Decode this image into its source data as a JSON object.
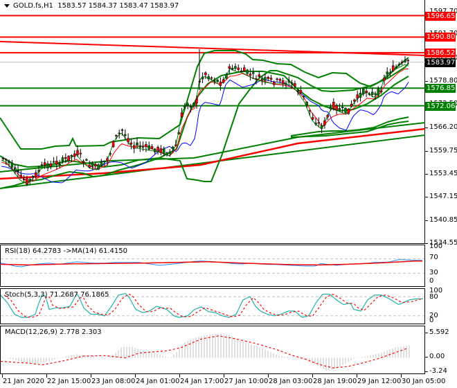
{
  "header": {
    "symbol": "GOLD.fs,H1",
    "open": "1583.57",
    "high": "1584.37",
    "low": "1583.47",
    "close": "1583.97",
    "menu_icon": "triangle-down-icon"
  },
  "main_axis": {
    "ticks": [
      "1597.70",
      "1591.70",
      "1585.10",
      "1578.80",
      "1572.50",
      "1566.20",
      "1559.75",
      "1553.45",
      "1547.15",
      "1540.85",
      "1534.55"
    ],
    "visible_ticks": [
      "1578.80",
      "1566.20",
      "1559.75",
      "1553.45",
      "1547.15",
      "1540.85",
      "1534.55"
    ]
  },
  "price_levels": [
    {
      "value": "1596.65",
      "color": "#ff0000",
      "type": "resistance"
    },
    {
      "value": "1590.80",
      "color": "#ff0000",
      "type": "resistance"
    },
    {
      "value": "1586.52",
      "color": "#ff0000",
      "type": "resistance"
    },
    {
      "value": "1583.97",
      "color": "#000000",
      "type": "current-price"
    },
    {
      "value": "1576.85",
      "color": "#008000",
      "type": "support"
    },
    {
      "value": "1572.06",
      "color": "#008000",
      "type": "support"
    }
  ],
  "rsi": {
    "label": "RSI(18) 64.2783  ->MA(14) 61.4150",
    "axis": [
      "100",
      "70",
      "30",
      "0"
    ]
  },
  "stoch": {
    "label": "Stoch(5,3,3) 71.2687 76.1865",
    "axis": [
      "100",
      "80",
      "20",
      "0"
    ]
  },
  "macd": {
    "label": "MACD(12,26,9) 2.778 2.303",
    "axis": [
      "5.592",
      "0.00",
      "-3.24"
    ]
  },
  "time_axis": [
    "21 Jan 2020",
    "22 Jan 15:00",
    "23 Jan 08:00",
    "24 Jan 01:00",
    "24 Jan 17:00",
    "27 Jan 10:00",
    "28 Jan 03:00",
    "28 Jan 19:00",
    "29 Jan 12:00",
    "30 Jan 05:00"
  ],
  "chart_data": [
    {
      "type": "candlestick",
      "title": "GOLD.fs,H1",
      "ohlc_last": {
        "open": 1583.57,
        "high": 1584.37,
        "low": 1583.47,
        "close": 1583.97
      },
      "ylim": [
        1534.55,
        1597.7
      ],
      "x": [
        "21 Jan 2020",
        "22 Jan 15:00",
        "23 Jan 08:00",
        "24 Jan 01:00",
        "24 Jan 17:00",
        "27 Jan 10:00",
        "28 Jan 03:00",
        "28 Jan 19:00",
        "29 Jan 12:00",
        "30 Jan 05:00"
      ],
      "approx_close": [
        1556,
        1558,
        1556,
        1561,
        1575,
        1580,
        1579,
        1568,
        1575,
        1584
      ],
      "horizontal_levels": [
        1596.65,
        1590.8,
        1586.52,
        1576.85,
        1572.06
      ],
      "overlays": [
        "Bollinger Bands (green)",
        "Moving averages (red, blue, green)",
        "Trend lines (red, green)"
      ]
    },
    {
      "type": "line",
      "title": "RSI(18) 64.2783 ->MA(14) 61.4150",
      "series": [
        {
          "name": "RSI(18)",
          "last": 64.2783
        },
        {
          "name": "MA(14)",
          "last": 61.415
        }
      ],
      "ylim": [
        0,
        100
      ],
      "levels": [
        70,
        30
      ]
    },
    {
      "type": "line",
      "title": "Stoch(5,3,3) 71.2687 76.1865",
      "series": [
        {
          "name": "%K",
          "last": 71.2687
        },
        {
          "name": "%D",
          "last": 76.1865
        }
      ],
      "ylim": [
        0,
        100
      ],
      "levels": [
        80,
        20
      ]
    },
    {
      "type": "bar",
      "title": "MACD(12,26,9) 2.778 2.303",
      "series": [
        {
          "name": "MACD",
          "last": 2.778
        },
        {
          "name": "Signal",
          "last": 2.303
        }
      ],
      "ylim": [
        -3.24,
        5.592
      ]
    }
  ]
}
